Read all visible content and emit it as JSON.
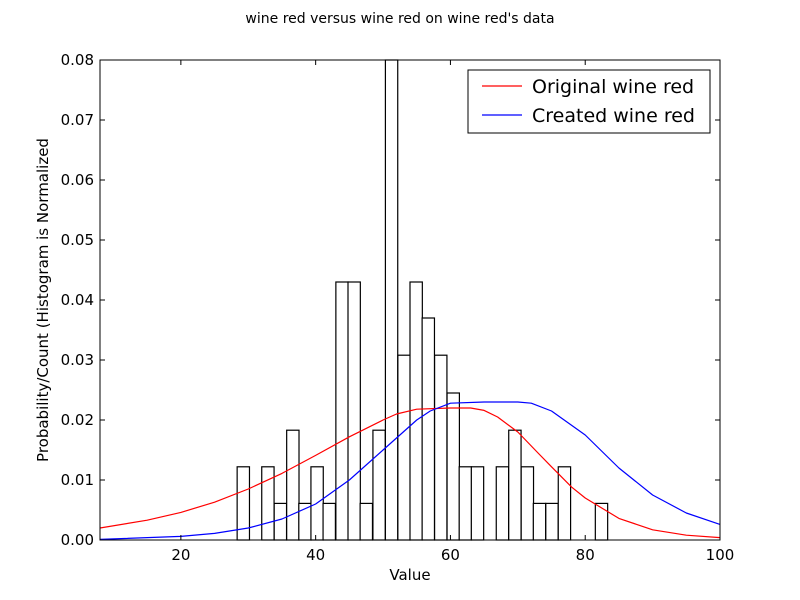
{
  "chart_data": {
    "type": "histogram+line",
    "title": "wine red versus wine red on wine red's data",
    "xlabel": "Value",
    "ylabel": "Probability/Count (Histogram is Normalized",
    "xlim": [
      8,
      100
    ],
    "ylim": [
      0,
      0.08
    ],
    "xticks": [
      20,
      40,
      60,
      80,
      100
    ],
    "yticks": [
      0.0,
      0.01,
      0.02,
      0.03,
      0.04,
      0.05,
      0.06,
      0.07,
      0.08
    ],
    "ytick_labels": [
      "0.00",
      "0.01",
      "0.02",
      "0.03",
      "0.04",
      "0.05",
      "0.06",
      "0.07",
      "0.08"
    ],
    "grid": false,
    "legend_position": "top-right",
    "histogram": {
      "bin_width": 1.83,
      "bins": [
        {
          "x0": 28.35,
          "value": 0.0122
        },
        {
          "x0": 32.0,
          "value": 0.0122
        },
        {
          "x0": 33.85,
          "value": 0.0061
        },
        {
          "x0": 35.7,
          "value": 0.0183
        },
        {
          "x0": 37.5,
          "value": 0.0061
        },
        {
          "x0": 39.3,
          "value": 0.0122
        },
        {
          "x0": 41.1,
          "value": 0.0061
        },
        {
          "x0": 43.0,
          "value": 0.043
        },
        {
          "x0": 44.8,
          "value": 0.043
        },
        {
          "x0": 46.6,
          "value": 0.0061
        },
        {
          "x0": 48.5,
          "value": 0.0183
        },
        {
          "x0": 50.35,
          "value": 0.08
        },
        {
          "x0": 52.2,
          "value": 0.0308
        },
        {
          "x0": 54.0,
          "value": 0.043
        },
        {
          "x0": 55.8,
          "value": 0.037
        },
        {
          "x0": 57.65,
          "value": 0.0308
        },
        {
          "x0": 59.5,
          "value": 0.0245
        },
        {
          "x0": 61.3,
          "value": 0.0122
        },
        {
          "x0": 63.1,
          "value": 0.0122
        },
        {
          "x0": 66.8,
          "value": 0.0122
        },
        {
          "x0": 68.65,
          "value": 0.0183
        },
        {
          "x0": 70.5,
          "value": 0.0122
        },
        {
          "x0": 72.3,
          "value": 0.0061
        },
        {
          "x0": 74.15,
          "value": 0.0061
        },
        {
          "x0": 76.0,
          "value": 0.0122
        },
        {
          "x0": 81.5,
          "value": 0.0061
        }
      ]
    },
    "series": [
      {
        "name": "Original wine red",
        "color": "#ff0000",
        "x": [
          8,
          15,
          20,
          25,
          30,
          35,
          40,
          45,
          50,
          52,
          55,
          60,
          63,
          65,
          67,
          70,
          73,
          75,
          78,
          80,
          85,
          90,
          95,
          100
        ],
        "y": [
          0.002,
          0.0033,
          0.0046,
          0.0063,
          0.0085,
          0.0111,
          0.0141,
          0.0172,
          0.02,
          0.021,
          0.0218,
          0.022,
          0.022,
          0.0216,
          0.0205,
          0.018,
          0.0145,
          0.0122,
          0.0088,
          0.007,
          0.0036,
          0.0017,
          0.0008,
          0.0004
        ]
      },
      {
        "name": "Created wine red",
        "color": "#0000ff",
        "x": [
          8,
          20,
          25,
          30,
          35,
          40,
          45,
          50,
          55,
          57,
          60,
          65,
          70,
          72,
          75,
          80,
          85,
          90,
          95,
          100
        ],
        "y": [
          0.0001,
          0.0006,
          0.0011,
          0.002,
          0.0035,
          0.006,
          0.01,
          0.015,
          0.02,
          0.0215,
          0.0228,
          0.023,
          0.023,
          0.0228,
          0.0215,
          0.0175,
          0.012,
          0.0075,
          0.0045,
          0.0026
        ]
      }
    ]
  }
}
